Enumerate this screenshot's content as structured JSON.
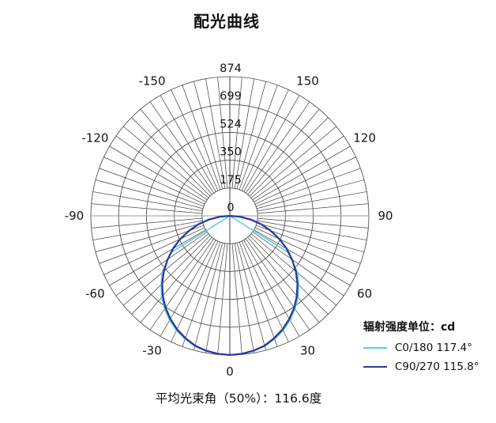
{
  "title": "配光曲线",
  "footer": "平均光束角（50%）：116.6度",
  "legend": {
    "title": "辐射强度单位：cd",
    "items": [
      {
        "label": "C0/180 117.4°",
        "color": "#5ecbe3"
      },
      {
        "label": "C90/270 115.8°",
        "color": "#2b3a9b"
      }
    ]
  },
  "chart_data": {
    "type": "polar_line",
    "title": "配光曲线",
    "unit": "cd",
    "angle_zero_position": "bottom",
    "rmax": 874,
    "radial_ticks": [
      0,
      175,
      350,
      524,
      699,
      874
    ],
    "angle_ticks": [
      0,
      30,
      60,
      90,
      120,
      150,
      -30,
      -60,
      -90,
      -120,
      -150
    ],
    "grid": {
      "spoke_step_deg": 5,
      "rings": [
        175,
        350,
        524,
        699,
        874
      ],
      "spoke_color": "#4a4a4a",
      "ring_color": "#4a4a4a",
      "h_axis_color": "#9a9a9a",
      "v_axis_color": "#3c3c3c"
    },
    "avg_beam_angle_50_deg": 116.6,
    "series": [
      {
        "name": "C0/180",
        "beam_angle_deg": 117.4,
        "color": "#5ecbe3",
        "stroke_width": 1.6,
        "points": [
          [
            -90,
            0
          ],
          [
            -58,
            435
          ],
          [
            -50,
            556
          ],
          [
            -45,
            610
          ],
          [
            -40,
            668
          ],
          [
            -35,
            714
          ],
          [
            -30,
            758
          ],
          [
            -25,
            794
          ],
          [
            -20,
            824
          ],
          [
            -15,
            848
          ],
          [
            -10,
            862
          ],
          [
            -5,
            870
          ],
          [
            0,
            874
          ],
          [
            5,
            870
          ],
          [
            10,
            862
          ],
          [
            15,
            848
          ],
          [
            20,
            824
          ],
          [
            25,
            794
          ],
          [
            30,
            758
          ],
          [
            35,
            714
          ],
          [
            40,
            668
          ],
          [
            45,
            610
          ],
          [
            50,
            556
          ],
          [
            58,
            435
          ],
          [
            90,
            0
          ]
        ]
      },
      {
        "name": "C90/270",
        "beam_angle_deg": 115.8,
        "color": "#2b3a9b",
        "stroke_width": 2.3,
        "points": [
          [
            -90,
            0
          ],
          [
            -85,
            64
          ],
          [
            -80,
            132
          ],
          [
            -75,
            204
          ],
          [
            -70,
            274
          ],
          [
            -65,
            344
          ],
          [
            -60,
            413
          ],
          [
            -55,
            478
          ],
          [
            -50,
            542
          ],
          [
            -45,
            602
          ],
          [
            -40,
            656
          ],
          [
            -35,
            705
          ],
          [
            -30,
            748
          ],
          [
            -25,
            786
          ],
          [
            -20,
            817
          ],
          [
            -15,
            844
          ],
          [
            -10,
            860
          ],
          [
            -5,
            870
          ],
          [
            0,
            874
          ],
          [
            5,
            870
          ],
          [
            10,
            860
          ],
          [
            15,
            844
          ],
          [
            20,
            817
          ],
          [
            25,
            786
          ],
          [
            30,
            748
          ],
          [
            35,
            705
          ],
          [
            40,
            656
          ],
          [
            45,
            602
          ],
          [
            50,
            542
          ],
          [
            55,
            478
          ],
          [
            60,
            413
          ],
          [
            65,
            344
          ],
          [
            70,
            274
          ],
          [
            75,
            204
          ],
          [
            80,
            132
          ],
          [
            85,
            64
          ],
          [
            90,
            0
          ]
        ]
      }
    ]
  }
}
